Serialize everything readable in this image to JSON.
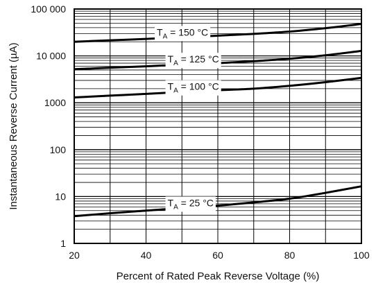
{
  "chart_data": {
    "type": "line",
    "xlabel": "Percent of Rated Peak Reverse Voltage (%)",
    "ylabel": "Instantaneous Reverse Current (µA)",
    "x_scale": "linear",
    "y_scale": "log",
    "xlim": [
      20,
      100
    ],
    "ylim": [
      1,
      100000
    ],
    "grid": true,
    "x_ticks": [
      20,
      40,
      60,
      80,
      100
    ],
    "x_tick_labels": [
      "20",
      "40",
      "60",
      "80",
      "100"
    ],
    "y_ticks": [
      1,
      10,
      100,
      1000,
      10000,
      100000
    ],
    "y_tick_labels": [
      "1",
      "10",
      "100",
      "1000",
      "10 000",
      "100 000"
    ],
    "series": [
      {
        "name": "TA = 150 °C",
        "label_main": "T",
        "label_sub": "A",
        "label_rest": " = 150 °C",
        "label_x": 43,
        "x": [
          20,
          30,
          40,
          50,
          60,
          70,
          80,
          90,
          100
        ],
        "y": [
          20000,
          21500,
          23000,
          25000,
          27000,
          29500,
          33000,
          39000,
          48000
        ]
      },
      {
        "name": "TA = 125 °C",
        "label_main": "T",
        "label_sub": "A",
        "label_rest": " = 125 °C",
        "label_x": 46,
        "x": [
          20,
          30,
          40,
          50,
          60,
          70,
          80,
          90,
          100
        ],
        "y": [
          5200,
          5600,
          6000,
          6500,
          7000,
          7700,
          8700,
          10300,
          12800
        ]
      },
      {
        "name": "TA = 100 °C",
        "label_main": "T",
        "label_sub": "A",
        "label_rest": " = 100 °C",
        "label_x": 46,
        "x": [
          20,
          30,
          40,
          50,
          60,
          70,
          80,
          90,
          100
        ],
        "y": [
          1300,
          1420,
          1550,
          1700,
          1850,
          2000,
          2300,
          2750,
          3400
        ]
      },
      {
        "name": "TA = 25 °C",
        "label_main": "T",
        "label_sub": "A",
        "label_rest": " = 25 °C",
        "label_x": 46,
        "x": [
          20,
          30,
          40,
          50,
          60,
          70,
          80,
          90,
          100
        ],
        "y": [
          3.8,
          4.4,
          5.0,
          5.7,
          6.4,
          7.5,
          9.0,
          12.0,
          16.5
        ]
      }
    ]
  }
}
